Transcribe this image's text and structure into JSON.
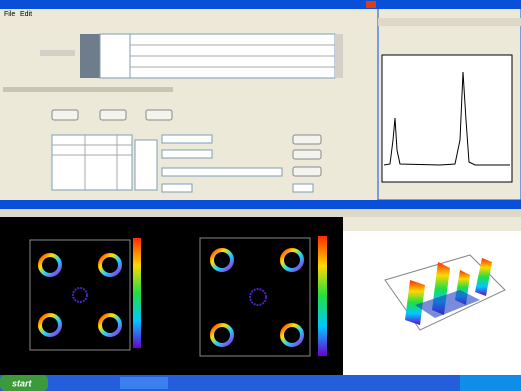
{
  "main_window": {
    "menu": [
      "File",
      "Edit"
    ]
  },
  "taskbar": {
    "start": "start"
  }
}
